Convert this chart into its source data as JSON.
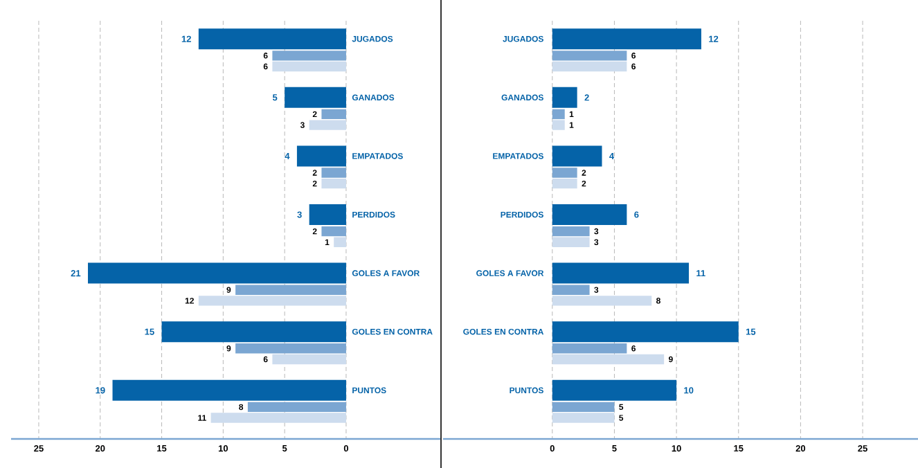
{
  "chart_data": [
    {
      "type": "bar",
      "orientation": "horizontal",
      "categories": [
        "JUGADOS",
        "GANADOS",
        "EMPATADOS",
        "PERDIDOS",
        "GOLES A FAVOR",
        "GOLES EN CONTRA",
        "PUNTOS"
      ],
      "series": [
        {
          "color": "#0563a8",
          "values": [
            12,
            5,
            4,
            3,
            21,
            15,
            19
          ]
        },
        {
          "color": "#7ba6d2",
          "values": [
            6,
            2,
            2,
            2,
            9,
            9,
            8
          ]
        },
        {
          "color": "#cddcee",
          "values": [
            6,
            3,
            2,
            1,
            12,
            6,
            11
          ]
        }
      ],
      "xlim": [
        27.25,
        -7.66
      ],
      "xticks": [
        25,
        20,
        15,
        10,
        5,
        0
      ],
      "grid": true,
      "data_labels": true
    },
    {
      "type": "bar",
      "orientation": "horizontal",
      "categories": [
        "JUGADOS",
        "GANADOS",
        "EMPATADOS",
        "PERDIDOS",
        "GOLES A FAVOR",
        "GOLES EN CONTRA",
        "PUNTOS"
      ],
      "series": [
        {
          "color": "#0563a8",
          "values": [
            12,
            2,
            4,
            6,
            11,
            15,
            10
          ]
        },
        {
          "color": "#7ba6d2",
          "values": [
            6,
            1,
            2,
            3,
            3,
            6,
            5
          ]
        },
        {
          "color": "#cddcee",
          "values": [
            6,
            1,
            2,
            3,
            8,
            9,
            5
          ]
        }
      ],
      "xlim": [
        -8.8,
        29.46
      ],
      "xticks": [
        0,
        5,
        10,
        15,
        20,
        25
      ],
      "grid": true,
      "data_labels": true
    }
  ]
}
